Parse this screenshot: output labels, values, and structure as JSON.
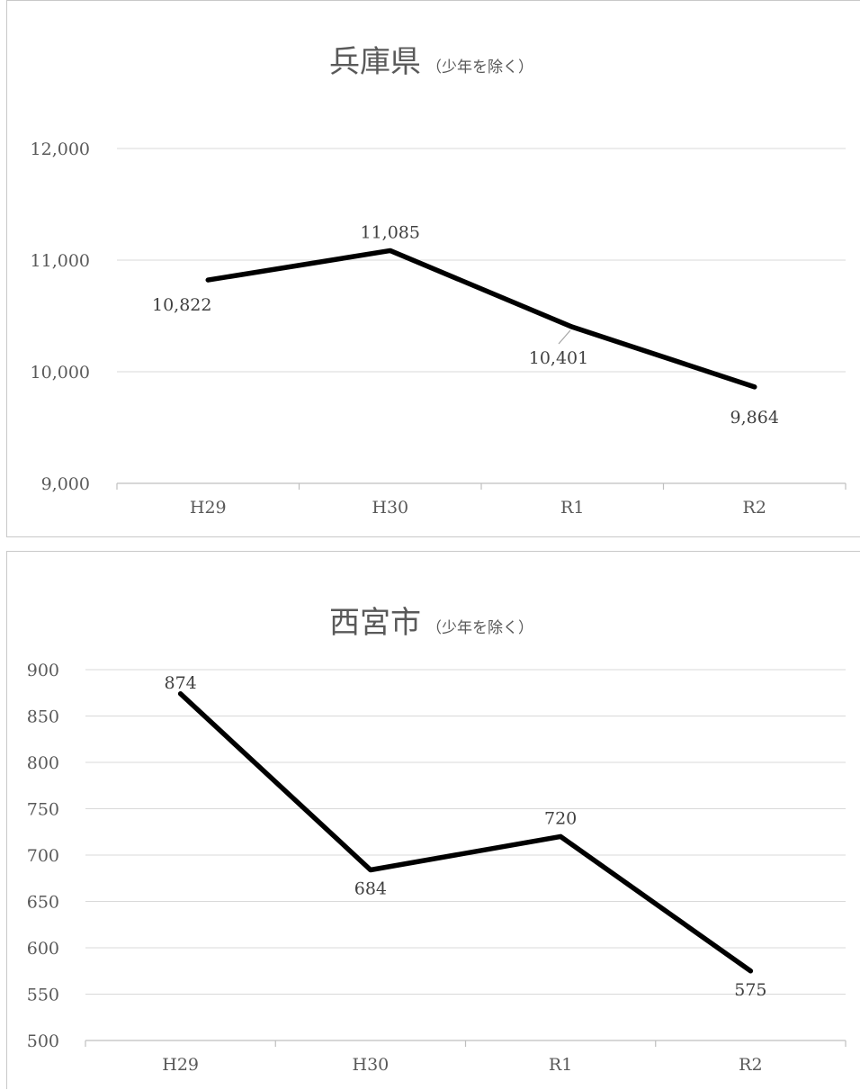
{
  "chart_data": [
    {
      "type": "line",
      "title": "兵庫県",
      "subtitle": "（少年を除く）",
      "categories": [
        "H29",
        "H30",
        "R1",
        "R2"
      ],
      "series": [
        {
          "values": [
            10822,
            11085,
            10401,
            9864
          ]
        }
      ],
      "data_labels": [
        "10,822",
        "11,085",
        "10,401",
        "9,864"
      ],
      "ylim": [
        9000,
        12000
      ],
      "yticks": [
        9000,
        10000,
        11000,
        12000
      ],
      "ytick_labels": [
        "9,000",
        "10,000",
        "11,000",
        "12,000"
      ],
      "xlabel": "",
      "ylabel": "",
      "grid": true,
      "legend": "none",
      "line_color": "#000000"
    },
    {
      "type": "line",
      "title": "西宮市",
      "subtitle": "（少年を除く）",
      "categories": [
        "H29",
        "H30",
        "R1",
        "R2"
      ],
      "series": [
        {
          "values": [
            874,
            684,
            720,
            575
          ]
        }
      ],
      "data_labels": [
        "874",
        "684",
        "720",
        "575"
      ],
      "ylim": [
        500,
        900
      ],
      "yticks": [
        500,
        550,
        600,
        650,
        700,
        750,
        800,
        850,
        900
      ],
      "ytick_labels": [
        "500",
        "550",
        "600",
        "650",
        "700",
        "750",
        "800",
        "850",
        "900"
      ],
      "xlabel": "",
      "ylabel": "",
      "grid": true,
      "legend": "none",
      "line_color": "#000000"
    }
  ]
}
